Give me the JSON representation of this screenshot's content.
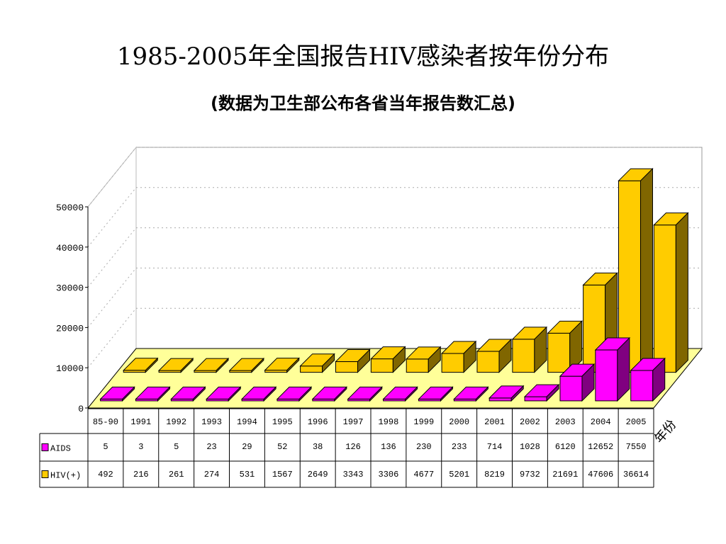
{
  "title": "1985-2005年全国报告HIV感染者按年份分布",
  "subtitle": "(数据为卫生部公布各省当年报告数汇总)",
  "chart_data": {
    "type": "bar",
    "categories": [
      "85-90",
      "1991",
      "1992",
      "1993",
      "1994",
      "1995",
      "1996",
      "1997",
      "1998",
      "1999",
      "2000",
      "2001",
      "2002",
      "2003",
      "2004",
      "2005"
    ],
    "series": [
      {
        "name": "AIDS",
        "values": [
          5,
          3,
          5,
          23,
          29,
          52,
          38,
          126,
          136,
          230,
          233,
          714,
          1028,
          6120,
          12652,
          7550
        ],
        "color": "#ff00ff"
      },
      {
        "name": "HIV(+)",
        "values": [
          492,
          216,
          261,
          274,
          531,
          1567,
          2649,
          3343,
          3306,
          4677,
          5201,
          8219,
          9732,
          21691,
          47606,
          36614
        ],
        "color": "#ffcc00"
      }
    ],
    "xlabel": "年份",
    "ylabel": "",
    "ylim": [
      0,
      50000
    ],
    "yticks": [
      0,
      10000,
      20000,
      30000,
      40000,
      50000
    ],
    "grid": true,
    "legend": "data-table"
  }
}
